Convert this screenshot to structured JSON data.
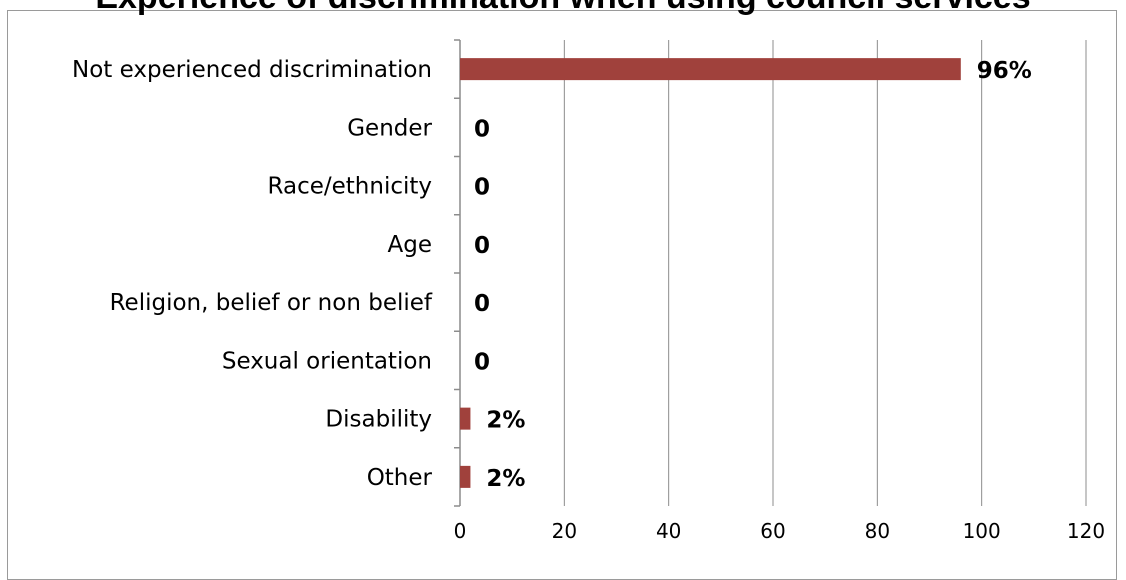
{
  "chart_data": {
    "type": "bar",
    "orientation": "horizontal",
    "title": "Experience of discrimination when using council services",
    "xlabel": "",
    "ylabel": "",
    "categories": [
      "Not experienced discrimination",
      "Gender",
      "Race/ethnicity",
      "Age",
      "Religion, belief or non belief",
      "Sexual orientation",
      "Disability",
      "Other"
    ],
    "values": [
      96,
      0,
      0,
      0,
      0,
      0,
      2,
      2
    ],
    "data_labels": [
      "96%",
      "0",
      "0",
      "0",
      "0",
      "0",
      "2%",
      "2%"
    ],
    "xlim": [
      0,
      120
    ],
    "x_ticks": [
      0,
      20,
      40,
      60,
      80,
      100,
      120
    ],
    "grid": "vertical",
    "legend": "none",
    "bar_color": "#A0413C",
    "grid_color": "#8c8c8c"
  }
}
